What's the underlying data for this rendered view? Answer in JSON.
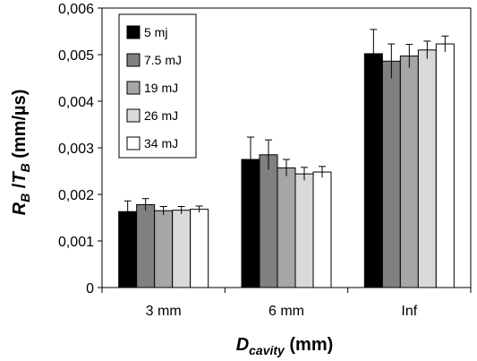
{
  "chart_data": {
    "type": "bar",
    "categories": [
      "3 mm",
      "6 mm",
      "Inf"
    ],
    "series": [
      {
        "name": "5 mj",
        "color": "#000000",
        "values": [
          0.00163,
          0.00275,
          0.00502
        ],
        "errors": [
          0.00023,
          0.00048,
          0.00052
        ]
      },
      {
        "name": "7.5 mJ",
        "color": "#808080",
        "values": [
          0.00178,
          0.00285,
          0.00486
        ],
        "errors": [
          0.00013,
          0.00032,
          0.00037
        ]
      },
      {
        "name": "19 mJ",
        "color": "#a6a6a6",
        "values": [
          0.00165,
          0.00257,
          0.00497
        ],
        "errors": [
          9e-05,
          0.00018,
          0.00025
        ]
      },
      {
        "name": "26 mJ",
        "color": "#d9d9d9",
        "values": [
          0.00166,
          0.00244,
          0.0051
        ],
        "errors": [
          8e-05,
          0.00014,
          0.00019
        ]
      },
      {
        "name": "34 mJ",
        "color": "#ffffff",
        "values": [
          0.00168,
          0.00248,
          0.00523
        ],
        "errors": [
          7e-05,
          0.00012,
          0.00017
        ]
      }
    ],
    "ylim": [
      0,
      0.006
    ],
    "yticks": [
      "0",
      "0,001",
      "0,002",
      "0,003",
      "0,004",
      "0,005",
      "0,006"
    ],
    "ylabel": {
      "main1": "R",
      "sub1": "B",
      "sep": " /",
      "main2": "T",
      "sub2": "B",
      "unit": " (mm/µs)"
    },
    "xlabel": {
      "main": "D",
      "sub": "cavity",
      "unit": " (mm)"
    },
    "legend_position": "top-left",
    "grid": false
  }
}
